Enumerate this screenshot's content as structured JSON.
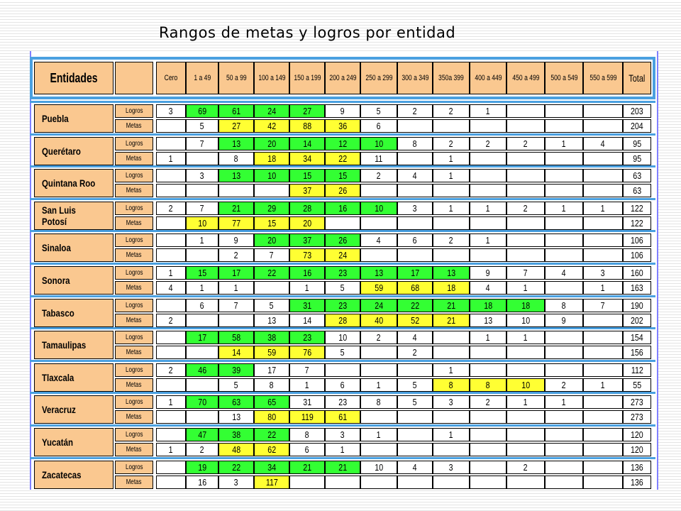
{
  "title": "Rangos de metas y logros por entidad",
  "header": {
    "entity_label": "Entidades",
    "columns": [
      "Cero",
      "1 a 49",
      "50 a 99",
      "100 a 149",
      "150 a 199",
      "200 a 249",
      "250 a 299",
      "300 a 349",
      "350a 399",
      "400 a 449",
      "450 a 499",
      "500 a 549",
      "550 a 599",
      "Total"
    ]
  },
  "row_labels": {
    "logros": "Logros",
    "metas": "Metas"
  },
  "colors": {
    "green": "#33ff33",
    "yellow": "#ffff33",
    "peach": "#fac890",
    "band": "#4aa0e0"
  },
  "entities": [
    {
      "name": "Puebla",
      "logros": {
        "values": [
          "3",
          "69",
          "61",
          "24",
          "27",
          "9",
          "5",
          "2",
          "2",
          "1",
          "",
          "",
          "",
          "203"
        ],
        "colors": [
          "w",
          "g",
          "g",
          "g",
          "g",
          "w",
          "w",
          "w",
          "w",
          "w",
          "w",
          "w",
          "w",
          "w"
        ]
      },
      "metas": {
        "values": [
          "",
          "5",
          "27",
          "42",
          "88",
          "36",
          "6",
          "",
          "",
          "",
          "",
          "",
          "",
          "204"
        ],
        "colors": [
          "w",
          "w",
          "y",
          "y",
          "y",
          "y",
          "w",
          "w",
          "w",
          "w",
          "w",
          "w",
          "w",
          "w"
        ]
      }
    },
    {
      "name": "Querétaro",
      "logros": {
        "values": [
          "",
          "7",
          "13",
          "20",
          "14",
          "12",
          "10",
          "8",
          "2",
          "2",
          "2",
          "1",
          "4",
          "95"
        ],
        "colors": [
          "w",
          "w",
          "g",
          "g",
          "g",
          "g",
          "g",
          "w",
          "w",
          "w",
          "w",
          "w",
          "w",
          "w"
        ]
      },
      "metas": {
        "values": [
          "1",
          "",
          "8",
          "18",
          "34",
          "22",
          "11",
          "",
          "1",
          "",
          "",
          "",
          "",
          "95"
        ],
        "colors": [
          "w",
          "w",
          "w",
          "y",
          "y",
          "y",
          "w",
          "w",
          "w",
          "w",
          "w",
          "w",
          "w",
          "w"
        ]
      }
    },
    {
      "name": "Quintana Roo",
      "logros": {
        "values": [
          "",
          "3",
          "13",
          "10",
          "15",
          "15",
          "2",
          "4",
          "1",
          "",
          "",
          "",
          "",
          "63"
        ],
        "colors": [
          "w",
          "w",
          "g",
          "g",
          "g",
          "g",
          "w",
          "w",
          "w",
          "w",
          "w",
          "w",
          "w",
          "w"
        ]
      },
      "metas": {
        "values": [
          "",
          "",
          "",
          "",
          "37",
          "26",
          "",
          "",
          "",
          "",
          "",
          "",
          "",
          "63"
        ],
        "colors": [
          "w",
          "w",
          "w",
          "w",
          "y",
          "y",
          "w",
          "w",
          "w",
          "w",
          "w",
          "w",
          "w",
          "w"
        ]
      }
    },
    {
      "name": "San Luis Potosí",
      "logros": {
        "values": [
          "2",
          "7",
          "21",
          "29",
          "28",
          "16",
          "10",
          "3",
          "1",
          "1",
          "2",
          "1",
          "1",
          "122"
        ],
        "colors": [
          "w",
          "w",
          "g",
          "g",
          "g",
          "g",
          "g",
          "w",
          "w",
          "w",
          "w",
          "w",
          "w",
          "w"
        ]
      },
      "metas": {
        "values": [
          "",
          "10",
          "77",
          "15",
          "20",
          "",
          "",
          "",
          "",
          "",
          "",
          "",
          "",
          "122"
        ],
        "colors": [
          "w",
          "y",
          "y",
          "y",
          "y",
          "w",
          "w",
          "w",
          "w",
          "w",
          "w",
          "w",
          "w",
          "w"
        ]
      }
    },
    {
      "name": "Sinaloa",
      "logros": {
        "values": [
          "",
          "1",
          "9",
          "20",
          "37",
          "26",
          "4",
          "6",
          "2",
          "1",
          "",
          "",
          "",
          "106"
        ],
        "colors": [
          "w",
          "w",
          "w",
          "g",
          "g",
          "g",
          "w",
          "w",
          "w",
          "w",
          "w",
          "w",
          "w",
          "w"
        ]
      },
      "metas": {
        "values": [
          "",
          "",
          "2",
          "7",
          "73",
          "24",
          "",
          "",
          "",
          "",
          "",
          "",
          "",
          "106"
        ],
        "colors": [
          "w",
          "w",
          "w",
          "w",
          "y",
          "y",
          "w",
          "w",
          "w",
          "w",
          "w",
          "w",
          "w",
          "w"
        ]
      }
    },
    {
      "name": "Sonora",
      "logros": {
        "values": [
          "1",
          "15",
          "17",
          "22",
          "16",
          "23",
          "13",
          "17",
          "13",
          "9",
          "7",
          "4",
          "3",
          "160"
        ],
        "colors": [
          "w",
          "g",
          "g",
          "g",
          "g",
          "g",
          "g",
          "g",
          "g",
          "w",
          "w",
          "w",
          "w",
          "w"
        ]
      },
      "metas": {
        "values": [
          "4",
          "1",
          "1",
          "",
          "1",
          "5",
          "59",
          "68",
          "18",
          "4",
          "1",
          "",
          "1",
          "163"
        ],
        "colors": [
          "w",
          "w",
          "w",
          "w",
          "w",
          "w",
          "y",
          "y",
          "y",
          "w",
          "w",
          "w",
          "w",
          "w"
        ]
      }
    },
    {
      "name": "Tabasco",
      "logros": {
        "values": [
          "",
          "6",
          "7",
          "5",
          "31",
          "23",
          "24",
          "22",
          "21",
          "18",
          "18",
          "8",
          "7",
          "190"
        ],
        "colors": [
          "w",
          "w",
          "w",
          "w",
          "g",
          "g",
          "g",
          "g",
          "g",
          "g",
          "g",
          "w",
          "w",
          "w"
        ]
      },
      "metas": {
        "values": [
          "2",
          "",
          "",
          "13",
          "14",
          "28",
          "40",
          "52",
          "21",
          "13",
          "10",
          "9",
          "",
          "202"
        ],
        "colors": [
          "w",
          "w",
          "w",
          "w",
          "w",
          "y",
          "y",
          "y",
          "y",
          "w",
          "w",
          "w",
          "w",
          "w"
        ]
      }
    },
    {
      "name": "Tamaulipas",
      "logros": {
        "values": [
          "",
          "17",
          "58",
          "38",
          "23",
          "10",
          "2",
          "4",
          "",
          "1",
          "1",
          "",
          "",
          "154"
        ],
        "colors": [
          "w",
          "g",
          "g",
          "g",
          "g",
          "w",
          "w",
          "w",
          "w",
          "w",
          "w",
          "w",
          "w",
          "w"
        ]
      },
      "metas": {
        "values": [
          "",
          "",
          "14",
          "59",
          "76",
          "5",
          "",
          "2",
          "",
          "",
          "",
          "",
          "",
          "156"
        ],
        "colors": [
          "w",
          "w",
          "y",
          "y",
          "y",
          "w",
          "w",
          "w",
          "w",
          "w",
          "w",
          "w",
          "w",
          "w"
        ]
      }
    },
    {
      "name": "Tlaxcala",
      "logros": {
        "values": [
          "2",
          "46",
          "39",
          "17",
          "7",
          "",
          "",
          "",
          "1",
          "",
          "",
          "",
          "",
          "112"
        ],
        "colors": [
          "w",
          "g",
          "g",
          "w",
          "w",
          "w",
          "w",
          "w",
          "w",
          "w",
          "w",
          "w",
          "w",
          "w"
        ]
      },
      "metas": {
        "values": [
          "",
          "",
          "5",
          "8",
          "1",
          "6",
          "1",
          "5",
          "8",
          "8",
          "10",
          "2",
          "1",
          "55"
        ],
        "colors": [
          "w",
          "w",
          "w",
          "w",
          "w",
          "w",
          "w",
          "w",
          "y",
          "y",
          "y",
          "w",
          "w",
          "w"
        ]
      }
    },
    {
      "name": "Veracruz",
      "logros": {
        "values": [
          "1",
          "70",
          "63",
          "65",
          "31",
          "23",
          "8",
          "5",
          "3",
          "2",
          "1",
          "1",
          "",
          "273"
        ],
        "colors": [
          "w",
          "g",
          "g",
          "g",
          "w",
          "w",
          "w",
          "w",
          "w",
          "w",
          "w",
          "w",
          "w",
          "w"
        ]
      },
      "metas": {
        "values": [
          "",
          "",
          "13",
          "80",
          "119",
          "61",
          "",
          "",
          "",
          "",
          "",
          "",
          "",
          "273"
        ],
        "colors": [
          "w",
          "w",
          "w",
          "y",
          "y",
          "y",
          "w",
          "w",
          "w",
          "w",
          "w",
          "w",
          "w",
          "w"
        ]
      }
    },
    {
      "name": "Yucatán",
      "logros": {
        "values": [
          "",
          "47",
          "38",
          "22",
          "8",
          "3",
          "1",
          "",
          "1",
          "",
          "",
          "",
          "",
          "120"
        ],
        "colors": [
          "w",
          "g",
          "g",
          "g",
          "w",
          "w",
          "w",
          "w",
          "w",
          "w",
          "w",
          "w",
          "w",
          "w"
        ]
      },
      "metas": {
        "values": [
          "1",
          "2",
          "48",
          "62",
          "6",
          "1",
          "",
          "",
          "",
          "",
          "",
          "",
          "",
          "120"
        ],
        "colors": [
          "w",
          "w",
          "y",
          "y",
          "w",
          "w",
          "w",
          "w",
          "w",
          "w",
          "w",
          "w",
          "w",
          "w"
        ]
      }
    },
    {
      "name": "Zacatecas",
      "logros": {
        "values": [
          "",
          "19",
          "22",
          "34",
          "21",
          "21",
          "10",
          "4",
          "3",
          "",
          "2",
          "",
          "",
          "136"
        ],
        "colors": [
          "w",
          "g",
          "g",
          "g",
          "g",
          "g",
          "w",
          "w",
          "w",
          "w",
          "w",
          "w",
          "w",
          "w"
        ]
      },
      "metas": {
        "values": [
          "",
          "16",
          "3",
          "117",
          "",
          "",
          "",
          "",
          "",
          "",
          "",
          "",
          "",
          "136"
        ],
        "colors": [
          "w",
          "w",
          "w",
          "y",
          "w",
          "w",
          "w",
          "w",
          "w",
          "w",
          "w",
          "w",
          "w",
          "w"
        ]
      }
    }
  ]
}
